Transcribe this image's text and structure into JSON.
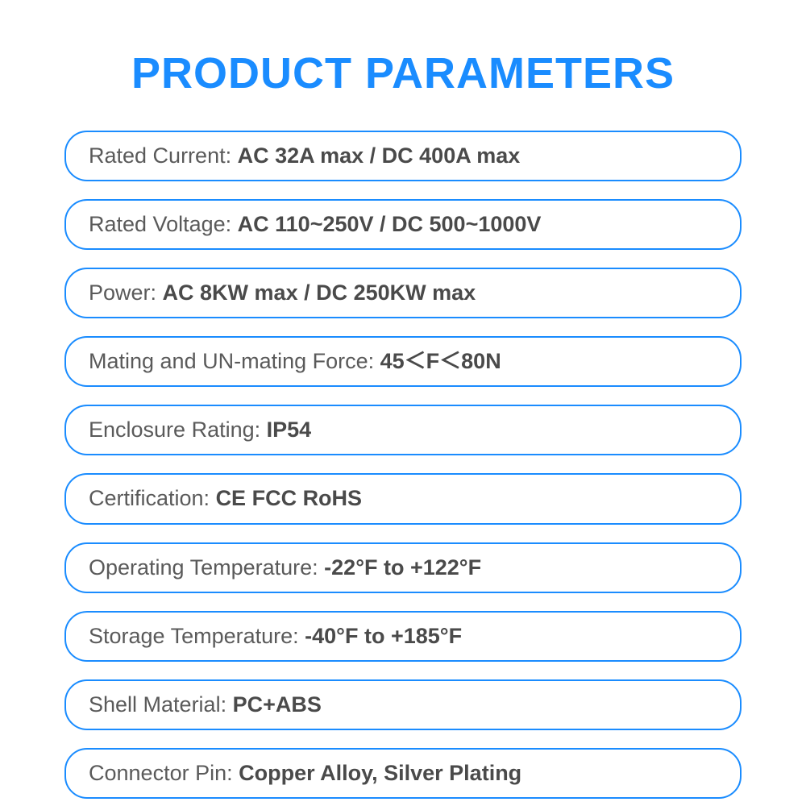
{
  "title": "PRODUCT PARAMETERS",
  "colors": {
    "title_color": "#1a8cff",
    "border_color": "#1a8cff",
    "label_color": "#5a5a5a",
    "value_color": "#4a4a4a",
    "background": "#ffffff"
  },
  "typography": {
    "title_fontsize": 54,
    "row_fontsize": 27,
    "title_weight": 600,
    "value_weight": 700,
    "label_weight": 400
  },
  "layout": {
    "row_border_radius": 28,
    "row_border_width": 2.5,
    "row_gap": 22,
    "row_padding_v": 12,
    "row_padding_h": 28
  },
  "params": [
    {
      "label": "Rated Current: ",
      "value": "AC 32A max / DC 400A max"
    },
    {
      "label": "Rated Voltage: ",
      "value": "AC 110~250V / DC 500~1000V"
    },
    {
      "label": "Power: ",
      "value": "AC 8KW max / DC 250KW max"
    },
    {
      "label": "Mating and UN-mating Force: ",
      "value": "45＜F＜80N"
    },
    {
      "label": "Enclosure Rating: ",
      "value": "IP54"
    },
    {
      "label": "Certification: ",
      "value": "CE FCC RoHS"
    },
    {
      "label": "Operating Temperature: ",
      "value": "-22°F to +122°F"
    },
    {
      "label": "Storage Temperature: ",
      "value": "-40°F to +185°F"
    },
    {
      "label": "Shell Material: ",
      "value": "PC+ABS"
    },
    {
      "label": "Connector Pin: ",
      "value": "Copper Alloy, Silver Plating"
    }
  ]
}
